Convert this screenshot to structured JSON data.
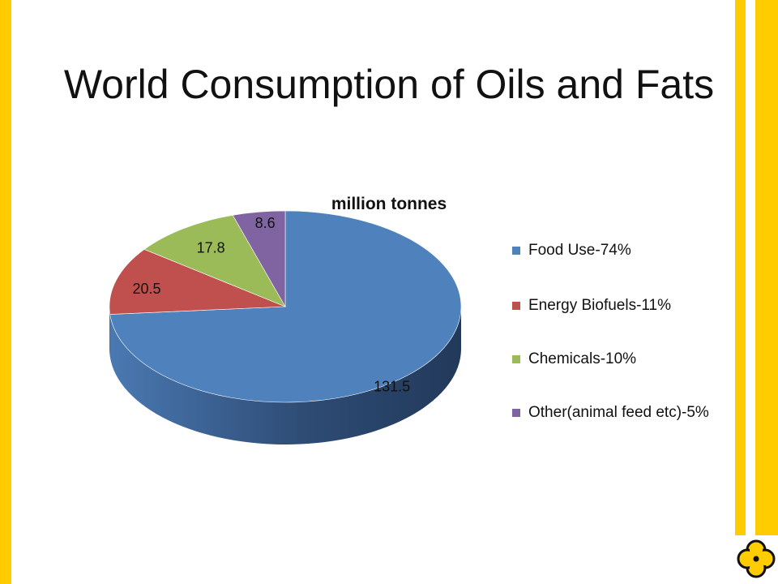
{
  "slide": {
    "title": "World Consumption of Oils and Fats",
    "accent_color": "#ffcc00"
  },
  "logo": {
    "icon": "quatrefoil-logo-icon"
  },
  "chart_data": {
    "type": "pie",
    "subtitle": "million tonnes",
    "legend_position": "right",
    "three_d": true,
    "slices": [
      {
        "label": "Food Use-74%",
        "value": 131.5,
        "data_label": "131.5",
        "color": "#4f81bd"
      },
      {
        "label": "Energy Biofuels-11%",
        "value": 20.5,
        "data_label": "20.5",
        "color": "#c0504d"
      },
      {
        "label": "Chemicals-10%",
        "value": 17.8,
        "data_label": "17.8",
        "color": "#9bbb59"
      },
      {
        "label": "Other(animal feed etc)-5%",
        "value": 8.6,
        "data_label": "8.6",
        "color": "#8064a2"
      }
    ]
  }
}
